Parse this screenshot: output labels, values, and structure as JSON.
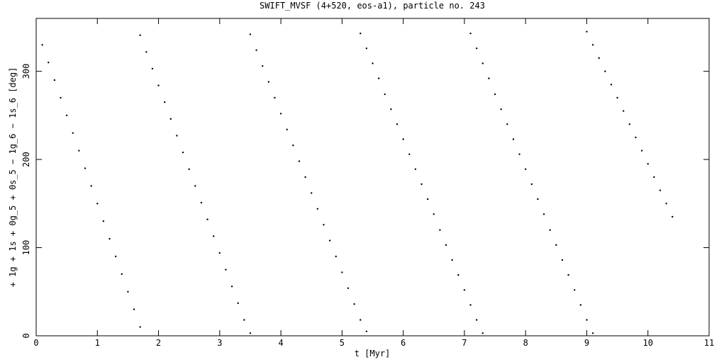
{
  "chart_data": {
    "type": "scatter",
    "title": "SWIFT_MVSF (4+520, eos-a1), particle no. 243",
    "x_label": "t [Myr]",
    "y_label": "+ 1g + 1s + 0g_5 + 0s_5 − 1g_6 − 1s_6 [deg]",
    "color": "#000000",
    "xlim": [
      0,
      11
    ],
    "xticks": [
      0,
      1,
      2,
      3,
      4,
      5,
      6,
      7,
      8,
      9,
      10,
      11
    ],
    "ylim": [
      0,
      360
    ],
    "yticks": [
      0,
      100,
      200,
      300
    ],
    "x": [
      0.1,
      0.2,
      0.3,
      0.4,
      0.5,
      0.6,
      0.7,
      0.8,
      0.9,
      1.0,
      1.1,
      1.2,
      1.3,
      1.4,
      1.5,
      1.6,
      1.7,
      1.7,
      1.8,
      1.9,
      2.0,
      2.1,
      2.2,
      2.3,
      2.4,
      2.5,
      2.6,
      2.7,
      2.8,
      2.9,
      3.0,
      3.1,
      3.2,
      3.3,
      3.4,
      3.5,
      3.5,
      3.6,
      3.7,
      3.8,
      3.9,
      4.0,
      4.1,
      4.2,
      4.3,
      4.4,
      4.5,
      4.6,
      4.7,
      4.8,
      4.9,
      5.0,
      5.1,
      5.2,
      5.3,
      5.4,
      5.3,
      5.4,
      5.5,
      5.6,
      5.7,
      5.8,
      5.9,
      6.0,
      6.1,
      6.2,
      6.3,
      6.4,
      6.5,
      6.6,
      6.7,
      6.8,
      6.9,
      7.0,
      7.1,
      7.2,
      7.3,
      7.1,
      7.2,
      7.3,
      7.4,
      7.5,
      7.6,
      7.7,
      7.8,
      7.9,
      8.0,
      8.1,
      8.2,
      8.3,
      8.4,
      8.5,
      8.6,
      8.7,
      8.8,
      8.9,
      9.0,
      9.1,
      9.0,
      9.1,
      9.2,
      9.3,
      9.4,
      9.5,
      9.6,
      9.7,
      9.8,
      9.9,
      10.0,
      10.1,
      10.2,
      10.3,
      10.4
    ],
    "values": [
      330,
      310,
      290,
      270,
      250,
      230,
      210,
      190,
      170,
      150,
      130,
      110,
      90,
      70,
      50,
      30,
      10,
      341,
      322,
      303,
      284,
      265,
      246,
      227,
      208,
      189,
      170,
      151,
      132,
      113,
      94,
      75,
      56,
      37,
      18,
      3,
      342,
      324,
      306,
      288,
      270,
      252,
      234,
      216,
      198,
      180,
      162,
      144,
      126,
      108,
      90,
      72,
      54,
      36,
      18,
      5,
      343,
      326,
      309,
      292,
      274,
      257,
      240,
      223,
      206,
      189,
      172,
      155,
      138,
      120,
      103,
      86,
      69,
      52,
      35,
      18,
      3,
      343,
      326,
      309,
      292,
      274,
      257,
      240,
      223,
      206,
      189,
      172,
      155,
      138,
      120,
      103,
      86,
      69,
      52,
      35,
      18,
      3,
      345,
      330,
      315,
      300,
      285,
      270,
      255,
      240,
      225,
      210,
      195,
      180,
      165,
      150,
      135
    ]
  }
}
